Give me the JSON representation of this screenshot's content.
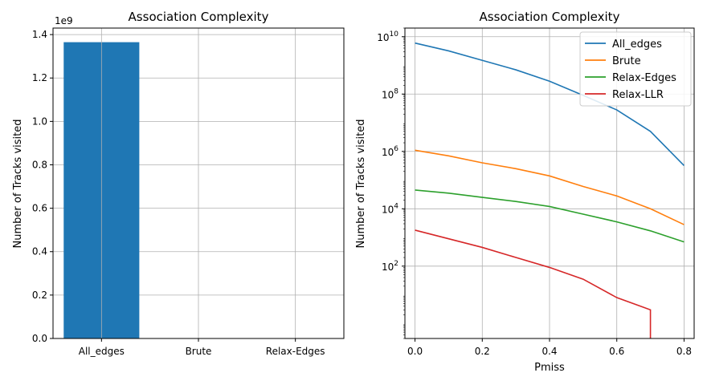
{
  "colors": {
    "blue": "#1f77b4",
    "orange": "#ff7f0e",
    "green": "#2ca02c",
    "red": "#d62728"
  },
  "chart_data": [
    {
      "type": "bar",
      "title": "Association Complexity",
      "xlabel": "",
      "ylabel": "Number of Tracks visited",
      "offset_label": "1e9",
      "categories": [
        "All_edges",
        "Brute",
        "Relax-Edges"
      ],
      "values": [
        1365000000,
        1000000,
        40000
      ],
      "ylim": [
        0,
        1430000000
      ],
      "yticks": [
        0,
        200000000,
        400000000,
        600000000,
        800000000,
        1000000000,
        1200000000,
        1400000000
      ],
      "ytick_labels": [
        "0.0",
        "0.2",
        "0.4",
        "0.6",
        "0.8",
        "1.0",
        "1.2",
        "1.4"
      ],
      "grid": true
    },
    {
      "type": "line",
      "title": "Association Complexity",
      "xlabel": "Pmiss",
      "ylabel": "Number of Tracks visited",
      "yscale": "log",
      "xlim": [
        -0.03,
        0.83
      ],
      "ylim": [
        0.3,
        20000000000
      ],
      "xticks": [
        0.0,
        0.2,
        0.4,
        0.6,
        0.8
      ],
      "xtick_labels": [
        "0.0",
        "0.2",
        "0.4",
        "0.6",
        "0.8"
      ],
      "yticks": [
        100,
        10000,
        1000000,
        100000000,
        10000000000
      ],
      "ytick_labels": [
        {
          "base": "10",
          "exp": "2"
        },
        {
          "base": "10",
          "exp": "4"
        },
        {
          "base": "10",
          "exp": "6"
        },
        {
          "base": "10",
          "exp": "8"
        },
        {
          "base": "10",
          "exp": "10"
        }
      ],
      "legend_position": "top-right",
      "grid": true,
      "series": [
        {
          "name": "All_edges",
          "color": "#1f77b4",
          "x": [
            0.0,
            0.1,
            0.2,
            0.3,
            0.4,
            0.5,
            0.6,
            0.7,
            0.8
          ],
          "y": [
            6000000000,
            3200000000,
            1500000000,
            700000000,
            280000000,
            90000000,
            28000000,
            5000000,
            320000
          ]
        },
        {
          "name": "Brute",
          "color": "#ff7f0e",
          "x": [
            0.0,
            0.1,
            0.2,
            0.3,
            0.4,
            0.5,
            0.6,
            0.7,
            0.8
          ],
          "y": [
            1100000,
            700000,
            400000,
            250000,
            140000,
            60000,
            28000,
            10000,
            2800
          ]
        },
        {
          "name": "Relax-Edges",
          "color": "#2ca02c",
          "x": [
            0.0,
            0.1,
            0.2,
            0.3,
            0.4,
            0.5,
            0.6,
            0.7,
            0.8
          ],
          "y": [
            45000,
            35000,
            25000,
            18000,
            12000,
            6500,
            3500,
            1700,
            700
          ]
        },
        {
          "name": "Relax-LLR",
          "color": "#d62728",
          "x": [
            0.0,
            0.1,
            0.2,
            0.3,
            0.4,
            0.5,
            0.6,
            0.7,
            0.7
          ],
          "y": [
            1800,
            900,
            450,
            200,
            90,
            35,
            8,
            3,
            0.3
          ]
        }
      ]
    }
  ]
}
